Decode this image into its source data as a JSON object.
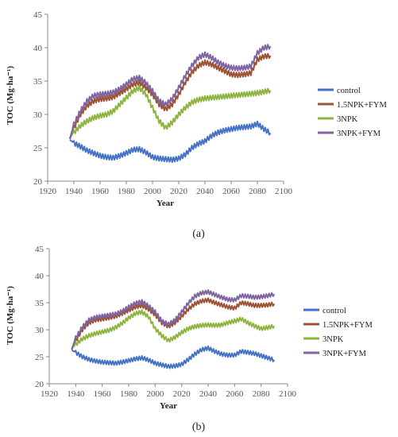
{
  "chart_data": [
    {
      "type": "line",
      "panel_label": "(a)",
      "xlabel": "Year",
      "ylabel": "TOC (Mg·ha⁻¹)",
      "xlim": [
        1920,
        2100
      ],
      "ylim": [
        20,
        45
      ],
      "xticks": [
        1920,
        1940,
        1960,
        1980,
        2000,
        2020,
        2040,
        2060,
        2080,
        2100
      ],
      "yticks": [
        20,
        25,
        30,
        35,
        40,
        45
      ],
      "grid": false,
      "legend": "right",
      "x": [
        1937,
        1940,
        1945,
        1950,
        1955,
        1960,
        1965,
        1970,
        1975,
        1980,
        1985,
        1990,
        1995,
        2000,
        2005,
        2010,
        2015,
        2020,
        2025,
        2030,
        2035,
        2040,
        2045,
        2050,
        2055,
        2060,
        2065,
        2070,
        2075,
        2080,
        2085,
        2090
      ],
      "series": [
        {
          "name": "control",
          "color": "#4472C4",
          "values": [
            26.2,
            25.7,
            25.2,
            24.6,
            24.2,
            23.8,
            23.6,
            23.5,
            23.8,
            24.2,
            24.7,
            24.8,
            24.3,
            23.6,
            23.4,
            23.3,
            23.2,
            23.4,
            24.0,
            25.0,
            25.6,
            26.0,
            26.8,
            27.3,
            27.6,
            27.8,
            28.0,
            28.1,
            28.2,
            28.6,
            27.8,
            27.2
          ]
        },
        {
          "name": "1.5NPK+FYM",
          "color": "#9E5235",
          "values": [
            26.3,
            28.0,
            30.0,
            31.3,
            32.0,
            32.3,
            32.4,
            32.6,
            33.2,
            33.8,
            34.5,
            34.8,
            34.0,
            33.0,
            31.5,
            30.8,
            31.5,
            33.0,
            34.8,
            36.3,
            37.3,
            37.8,
            37.5,
            37.0,
            36.5,
            36.0,
            35.9,
            36.0,
            36.2,
            38.2,
            38.7,
            38.8
          ]
        },
        {
          "name": "3NPK",
          "color": "#8DB43F",
          "values": [
            26.5,
            27.3,
            28.3,
            29.0,
            29.5,
            29.8,
            30.0,
            30.5,
            31.5,
            32.5,
            33.5,
            34.0,
            33.0,
            31.0,
            29.0,
            28.0,
            28.8,
            30.0,
            31.0,
            31.8,
            32.2,
            32.4,
            32.5,
            32.6,
            32.7,
            32.8,
            32.9,
            33.0,
            33.1,
            33.2,
            33.4,
            33.6
          ]
        },
        {
          "name": "3NPK+FYM",
          "color": "#8064A2",
          "values": [
            26.4,
            28.5,
            30.5,
            32.0,
            32.8,
            33.0,
            33.1,
            33.3,
            33.8,
            34.5,
            35.3,
            35.5,
            34.7,
            33.5,
            32.0,
            31.5,
            32.3,
            34.0,
            35.8,
            37.3,
            38.5,
            39.0,
            38.5,
            37.8,
            37.3,
            37.0,
            36.9,
            37.0,
            37.2,
            39.2,
            40.0,
            40.2
          ]
        }
      ]
    },
    {
      "type": "line",
      "panel_label": "(b)",
      "xlabel": "Year",
      "ylabel": "TOC (Mg·ha⁻¹)",
      "xlim": [
        1920,
        2100
      ],
      "ylim": [
        20,
        45
      ],
      "xticks": [
        1920,
        1940,
        1960,
        1980,
        2000,
        2020,
        2040,
        2060,
        2080,
        2100
      ],
      "yticks": [
        20,
        25,
        30,
        35,
        40,
        45
      ],
      "grid": false,
      "legend": "right",
      "x": [
        1937,
        1940,
        1945,
        1950,
        1955,
        1960,
        1965,
        1970,
        1975,
        1980,
        1985,
        1990,
        1995,
        2000,
        2005,
        2010,
        2015,
        2020,
        2025,
        2030,
        2035,
        2040,
        2045,
        2050,
        2055,
        2060,
        2065,
        2070,
        2075,
        2080,
        2085,
        2090
      ],
      "series": [
        {
          "name": "control",
          "color": "#4472C4",
          "values": [
            26.2,
            25.8,
            25.0,
            24.5,
            24.2,
            24.0,
            23.9,
            23.8,
            24.0,
            24.3,
            24.6,
            24.8,
            24.4,
            23.8,
            23.5,
            23.2,
            23.3,
            23.6,
            24.5,
            25.5,
            26.3,
            26.6,
            26.0,
            25.5,
            25.3,
            25.3,
            26.0,
            25.8,
            25.6,
            25.2,
            24.8,
            24.4
          ]
        },
        {
          "name": "1.5NPK+FYM",
          "color": "#9E5235",
          "values": [
            26.3,
            28.0,
            30.0,
            31.3,
            31.8,
            32.0,
            32.2,
            32.5,
            33.0,
            33.6,
            34.2,
            34.5,
            33.8,
            32.8,
            31.3,
            30.6,
            31.3,
            32.5,
            33.8,
            34.8,
            35.3,
            35.5,
            35.0,
            34.6,
            34.2,
            34.0,
            35.0,
            34.8,
            34.5,
            34.5,
            34.6,
            34.8
          ]
        },
        {
          "name": "3NPK",
          "color": "#8DB43F",
          "values": [
            26.5,
            27.3,
            28.3,
            28.9,
            29.3,
            29.6,
            29.9,
            30.4,
            31.2,
            32.2,
            33.0,
            33.3,
            32.4,
            30.2,
            28.9,
            28.0,
            28.6,
            29.5,
            30.2,
            30.6,
            30.8,
            30.9,
            30.8,
            30.9,
            31.3,
            31.6,
            32.0,
            31.3,
            30.7,
            30.2,
            30.4,
            30.7
          ]
        },
        {
          "name": "3NPK+FYM",
          "color": "#8064A2",
          "values": [
            26.4,
            28.5,
            30.5,
            31.8,
            32.3,
            32.5,
            32.7,
            32.9,
            33.4,
            34.2,
            34.9,
            35.2,
            34.4,
            33.3,
            31.6,
            31.0,
            31.8,
            33.3,
            34.9,
            36.2,
            36.8,
            37.0,
            36.5,
            36.0,
            35.6,
            35.5,
            36.3,
            36.2,
            36.0,
            36.1,
            36.3,
            36.6
          ]
        }
      ]
    }
  ]
}
